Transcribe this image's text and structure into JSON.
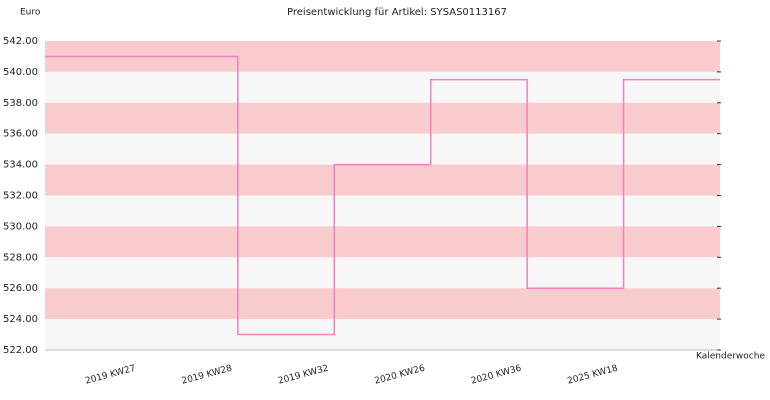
{
  "chart_data": {
    "type": "step",
    "title": "Preisentwicklung für Artikel: SYSAS0113167",
    "y_label": "Euro",
    "x_label": "Kalenderwoche",
    "categories": [
      "2019 KW27",
      "2019 KW28",
      "2019 KW32",
      "2020 KW26",
      "2020 KW36",
      "2025 KW18"
    ],
    "values": [
      541,
      523,
      534,
      539.5,
      526,
      539.5
    ],
    "color": "#f080c0",
    "band_colors": [
      "#f8cccc",
      "#f7f7f7"
    ],
    "ylim": [
      522,
      542
    ],
    "yticks": [
      {
        "value": 522,
        "label": "522.00"
      },
      {
        "value": 524,
        "label": "524.00"
      },
      {
        "value": 526,
        "label": "526.00"
      },
      {
        "value": 528,
        "label": "528.00"
      },
      {
        "value": 530,
        "label": "530.00"
      },
      {
        "value": 532,
        "label": "532.00"
      },
      {
        "value": 534,
        "label": "534.00"
      },
      {
        "value": 536,
        "label": "536.00"
      },
      {
        "value": 538,
        "label": "538.00"
      },
      {
        "value": 540,
        "label": "540.00"
      },
      {
        "value": 542,
        "label": "542.00"
      }
    ]
  }
}
